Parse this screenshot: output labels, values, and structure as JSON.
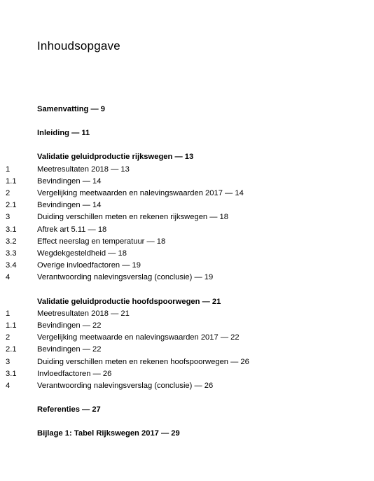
{
  "title": "Inhoudsopgave",
  "entries": [
    {
      "num": "",
      "label": "Samenvatting — 9",
      "bold": true
    },
    {
      "gap": true
    },
    {
      "num": "",
      "label": "Inleiding — 11",
      "bold": true
    },
    {
      "gap": true
    },
    {
      "num": "",
      "label": "Validatie geluidproductie rijkswegen — 13",
      "bold": true
    },
    {
      "num": "1",
      "label": "Meetresultaten 2018 — 13",
      "bold": false
    },
    {
      "num": "1.1",
      "label": "Bevindingen — 14",
      "bold": false
    },
    {
      "num": "2",
      "label": "Vergelijking meetwaarden en nalevingswaarden 2017 — 14",
      "bold": false
    },
    {
      "num": "2.1",
      "label": "Bevindingen — 14",
      "bold": false
    },
    {
      "num": "3",
      "label": "Duiding verschillen meten en rekenen rijkswegen — 18",
      "bold": false
    },
    {
      "num": "3.1",
      "label": "Aftrek art 5.11 — 18",
      "bold": false
    },
    {
      "num": "3.2",
      "label": "Effect neerslag en temperatuur — 18",
      "bold": false
    },
    {
      "num": "3.3",
      "label": "Wegdekgesteldheid — 18",
      "bold": false
    },
    {
      "num": "3.4",
      "label": "Overige invloedfactoren — 19",
      "bold": false
    },
    {
      "num": "4",
      "label": "Verantwoording nalevingsverslag (conclusie) — 19",
      "bold": false
    },
    {
      "gap": true
    },
    {
      "num": "",
      "label": "Validatie geluidproductie hoofdspoorwegen — 21",
      "bold": true
    },
    {
      "num": "1",
      "label": "Meetresultaten 2018 — 21",
      "bold": false
    },
    {
      "num": "1.1",
      "label": "Bevindingen — 22",
      "bold": false
    },
    {
      "num": "2",
      "label": "Vergelijking meetwaarde en nalevingswaarden 2017 — 22",
      "bold": false
    },
    {
      "num": "2.1",
      "label": "Bevindingen — 22",
      "bold": false
    },
    {
      "num": "3",
      "label": "Duiding verschillen meten en rekenen hoofspoorwegen — 26",
      "bold": false
    },
    {
      "num": "3.1",
      "label": "Invloedfactoren — 26",
      "bold": false
    },
    {
      "num": "4",
      "label": "Verantwoording nalevingsverslag (conclusie) — 26",
      "bold": false
    },
    {
      "gap": true
    },
    {
      "num": "",
      "label": "Referenties — 27",
      "bold": true
    },
    {
      "gap": true
    },
    {
      "num": "",
      "label": "Bijlage 1: Tabel Rijkswegen 2017 — 29",
      "bold": true
    }
  ]
}
